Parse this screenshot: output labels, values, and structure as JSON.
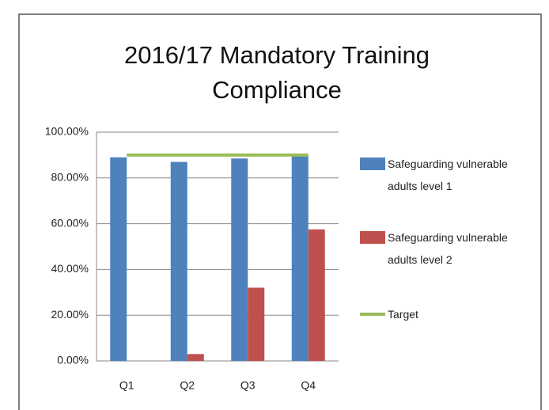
{
  "chart_data": {
    "type": "bar",
    "title": "2016/17 Mandatory Training Compliance",
    "categories": [
      "Q1",
      "Q2",
      "Q3",
      "Q4"
    ],
    "series": [
      {
        "name": "Safeguarding vulnerable adults level 1",
        "color": "#4f81bd",
        "type": "bar",
        "values": [
          89,
          87,
          88.5,
          90
        ]
      },
      {
        "name": "Safeguarding vulnerable adults level 2",
        "color": "#c0504d",
        "type": "bar",
        "values": [
          0,
          3,
          32,
          57.5
        ]
      },
      {
        "name": "Target",
        "color": "#9bbb59",
        "type": "line",
        "values": [
          90,
          90,
          90,
          90
        ]
      }
    ],
    "ylim": [
      0,
      100
    ],
    "yticks": [
      {
        "value": 0,
        "label": "0.00%"
      },
      {
        "value": 20,
        "label": "20.00%"
      },
      {
        "value": 40,
        "label": "40.00%"
      },
      {
        "value": 60,
        "label": "60.00%"
      },
      {
        "value": 80,
        "label": "80.00%"
      },
      {
        "value": 100,
        "label": "100.00%"
      }
    ],
    "grid": true,
    "legend": "right"
  }
}
